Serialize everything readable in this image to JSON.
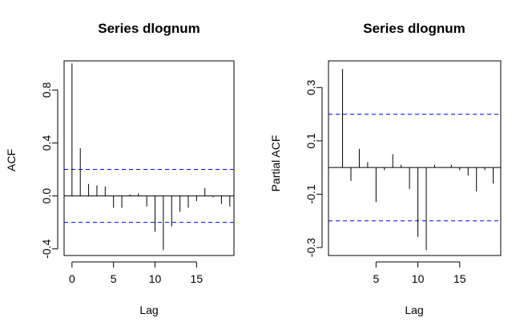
{
  "chart_data": [
    {
      "type": "bar",
      "title": "Series  dlognum",
      "xlabel": "Lag",
      "ylabel": "ACF",
      "lags": [
        0,
        1,
        2,
        3,
        4,
        5,
        6,
        7,
        8,
        9,
        10,
        11,
        12,
        13,
        14,
        15,
        16,
        17,
        18,
        19
      ],
      "values": [
        1.0,
        0.36,
        0.09,
        0.08,
        0.07,
        -0.09,
        -0.09,
        0.01,
        0.02,
        -0.08,
        -0.27,
        -0.41,
        -0.23,
        -0.12,
        -0.09,
        -0.04,
        0.06,
        -0.01,
        -0.06,
        -0.08
      ],
      "ci": [
        0.2,
        -0.2
      ],
      "ci_color": "#0000ff",
      "xlim": [
        -0.95,
        19.5
      ],
      "ylim": [
        -0.45,
        1.02
      ],
      "xticks": [
        0,
        5,
        10,
        15
      ],
      "xtick_labels": [
        "0",
        "5",
        "10",
        "15"
      ],
      "yticks": [
        -0.4,
        0.0,
        0.4,
        0.8
      ],
      "ytick_labels": [
        "-0.4",
        "0.0",
        "0.4",
        "0.8"
      ]
    },
    {
      "type": "bar",
      "title": "Series  dlognum",
      "xlabel": "Lag",
      "ylabel": "Partial ACF",
      "lags": [
        1,
        2,
        3,
        4,
        5,
        6,
        7,
        8,
        9,
        10,
        11,
        12,
        13,
        14,
        15,
        16,
        17,
        18,
        19
      ],
      "values": [
        0.37,
        -0.05,
        0.07,
        0.02,
        -0.13,
        -0.01,
        0.05,
        0.01,
        -0.08,
        -0.26,
        -0.31,
        0.01,
        0.0,
        0.01,
        -0.01,
        -0.03,
        -0.09,
        -0.01,
        -0.06
      ],
      "ci": [
        0.2,
        -0.2
      ],
      "ci_color": "#0000ff",
      "xlim": [
        -0.68,
        19.9
      ],
      "ylim": [
        -0.33,
        0.4
      ],
      "xticks": [
        5,
        10,
        15
      ],
      "xtick_labels": [
        "5",
        "10",
        "15"
      ],
      "yticks": [
        -0.3,
        -0.1,
        0.1,
        0.3
      ],
      "ytick_labels": [
        "-0.3",
        "-0.1",
        "0.1",
        "0.3"
      ]
    }
  ]
}
